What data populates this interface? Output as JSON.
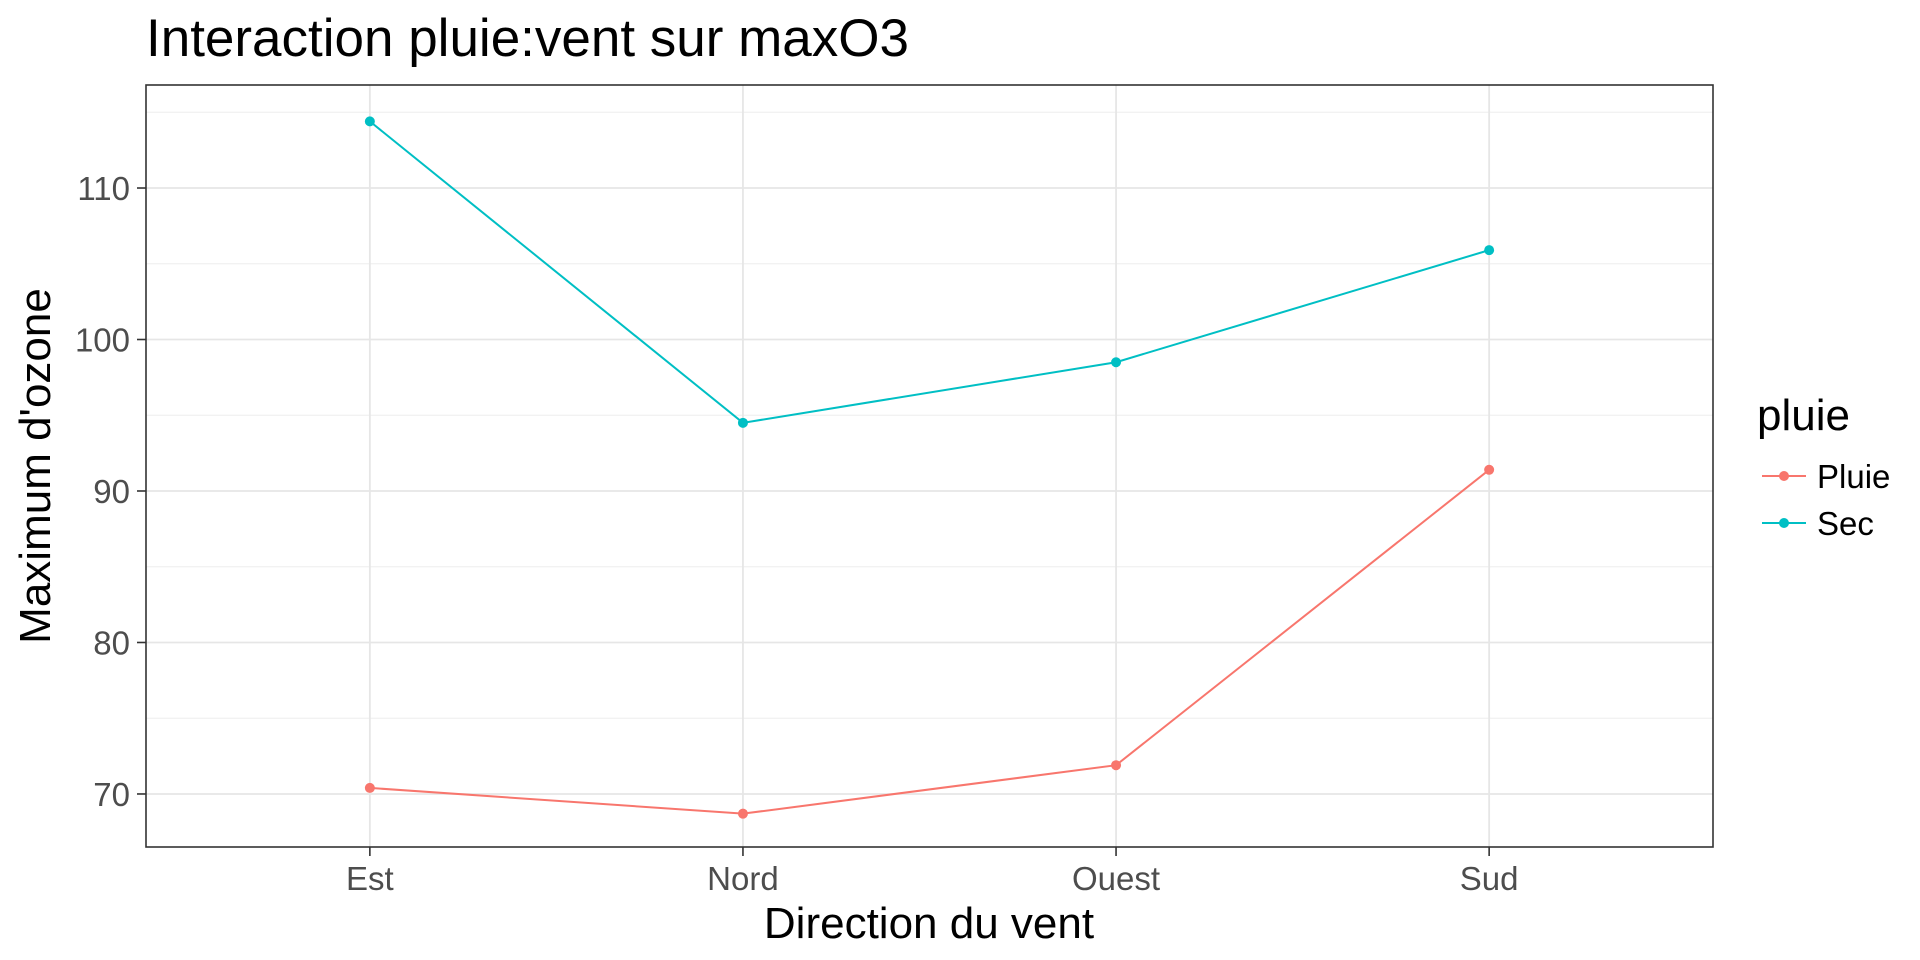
{
  "chart_data": {
    "type": "line",
    "title": "Interaction pluie:vent sur maxO3",
    "xlabel": "Direction du vent",
    "ylabel": "Maximum d'ozone",
    "categories": [
      "Est",
      "Nord",
      "Ouest",
      "Sud"
    ],
    "ylim": [
      66.5,
      116.8
    ],
    "yticks": [
      70,
      80,
      90,
      100,
      110
    ],
    "grid": true,
    "legend": {
      "title": "pluie",
      "position": "right"
    },
    "series": [
      {
        "name": "Pluie",
        "color": "#F8766D",
        "values": [
          70.4,
          68.7,
          71.9,
          91.4
        ]
      },
      {
        "name": "Sec",
        "color": "#00BFC4",
        "values": [
          114.4,
          94.5,
          98.5,
          105.9
        ]
      }
    ]
  }
}
